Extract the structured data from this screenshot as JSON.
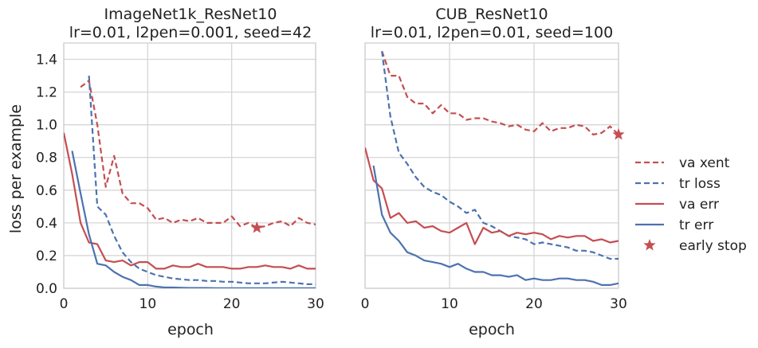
{
  "chart_data": [
    {
      "type": "line",
      "title": "ImageNet1k_ResNet10\nlr=0.01, l2pen=0.001, seed=42",
      "xlabel": "epoch",
      "ylabel": "loss per example",
      "xlim": [
        0,
        30
      ],
      "ylim": [
        0,
        1.5
      ],
      "xticks": [
        0,
        10,
        20,
        30
      ],
      "yticks": [
        0.0,
        0.2,
        0.4,
        0.6,
        0.8,
        1.0,
        1.2,
        1.4
      ],
      "grid": true,
      "series": [
        {
          "name": "va xent",
          "color": "#c44e52",
          "dash": true,
          "x": [
            2,
            3,
            4,
            5,
            6,
            7,
            8,
            9,
            10,
            11,
            12,
            13,
            14,
            15,
            16,
            17,
            18,
            19,
            20,
            21,
            22,
            23,
            24,
            25,
            26,
            27,
            28,
            29,
            30
          ],
          "y": [
            1.23,
            1.27,
            1.0,
            0.62,
            0.81,
            0.58,
            0.52,
            0.52,
            0.49,
            0.42,
            0.43,
            0.4,
            0.42,
            0.41,
            0.43,
            0.4,
            0.4,
            0.4,
            0.44,
            0.38,
            0.4,
            0.37,
            0.38,
            0.4,
            0.41,
            0.38,
            0.43,
            0.4,
            0.39
          ]
        },
        {
          "name": "tr loss",
          "color": "#4c72b0",
          "dash": true,
          "x": [
            3,
            4,
            5,
            6,
            7,
            8,
            9,
            10,
            11,
            12,
            13,
            14,
            15,
            16,
            17,
            18,
            19,
            20,
            21,
            22,
            23,
            24,
            25,
            26,
            27,
            28,
            29,
            30
          ],
          "y": [
            1.3,
            0.5,
            0.45,
            0.32,
            0.22,
            0.16,
            0.12,
            0.1,
            0.08,
            0.07,
            0.06,
            0.055,
            0.05,
            0.05,
            0.045,
            0.045,
            0.04,
            0.04,
            0.035,
            0.03,
            0.03,
            0.03,
            0.035,
            0.04,
            0.035,
            0.03,
            0.025,
            0.025
          ]
        },
        {
          "name": "va err",
          "color": "#c44e52",
          "dash": false,
          "x": [
            0,
            1,
            2,
            3,
            4,
            5,
            6,
            7,
            8,
            9,
            10,
            11,
            12,
            13,
            14,
            15,
            16,
            17,
            18,
            19,
            20,
            21,
            22,
            23,
            24,
            25,
            26,
            27,
            28,
            29,
            30
          ],
          "y": [
            0.95,
            0.7,
            0.4,
            0.28,
            0.27,
            0.17,
            0.16,
            0.17,
            0.14,
            0.16,
            0.16,
            0.12,
            0.12,
            0.14,
            0.13,
            0.13,
            0.15,
            0.13,
            0.13,
            0.13,
            0.12,
            0.12,
            0.13,
            0.13,
            0.14,
            0.13,
            0.13,
            0.12,
            0.14,
            0.12,
            0.12
          ]
        },
        {
          "name": "tr err",
          "color": "#4c72b0",
          "dash": false,
          "x": [
            1,
            2,
            3,
            4,
            5,
            6,
            7,
            8,
            9,
            10,
            11,
            12,
            13,
            14,
            15,
            16,
            17,
            18,
            19,
            20,
            21,
            22,
            23,
            24,
            25,
            26,
            27,
            28,
            29,
            30
          ],
          "y": [
            0.84,
            0.58,
            0.33,
            0.15,
            0.14,
            0.1,
            0.07,
            0.05,
            0.02,
            0.02,
            0.01,
            0.005,
            0.005,
            0.003,
            0.002,
            0.002,
            0.002,
            0.001,
            0.001,
            0.001,
            0.001,
            0.001,
            0.001,
            0.001,
            0.001,
            0.001,
            0.001,
            0.001,
            0.001,
            0.001
          ]
        }
      ],
      "early_stop": {
        "x": 23,
        "y": 0.37
      }
    },
    {
      "type": "line",
      "title": "CUB_ResNet10\nlr=0.01, l2pen=0.01, seed=100",
      "xlabel": "epoch",
      "ylabel": "",
      "xlim": [
        0,
        30
      ],
      "ylim": [
        0,
        1.5
      ],
      "xticks": [
        0,
        10,
        20,
        30
      ],
      "grid": true,
      "series": [
        {
          "name": "va xent",
          "color": "#c44e52",
          "dash": true,
          "x": [
            2,
            3,
            4,
            5,
            6,
            7,
            8,
            9,
            10,
            11,
            12,
            13,
            14,
            15,
            16,
            17,
            18,
            19,
            20,
            21,
            22,
            23,
            24,
            25,
            26,
            27,
            28,
            29,
            30
          ],
          "y": [
            1.45,
            1.3,
            1.3,
            1.17,
            1.13,
            1.13,
            1.07,
            1.12,
            1.07,
            1.07,
            1.03,
            1.04,
            1.04,
            1.02,
            1.01,
            0.99,
            1.0,
            0.97,
            0.96,
            1.01,
            0.96,
            0.98,
            0.98,
            1.0,
            0.99,
            0.94,
            0.95,
            0.99,
            0.94
          ]
        },
        {
          "name": "tr loss",
          "color": "#4c72b0",
          "dash": true,
          "x": [
            2,
            3,
            4,
            5,
            6,
            7,
            8,
            9,
            10,
            11,
            12,
            13,
            14,
            15,
            16,
            17,
            18,
            19,
            20,
            21,
            22,
            23,
            24,
            25,
            26,
            27,
            28,
            29,
            30
          ],
          "y": [
            1.45,
            1.05,
            0.83,
            0.76,
            0.68,
            0.62,
            0.59,
            0.57,
            0.53,
            0.5,
            0.46,
            0.48,
            0.4,
            0.38,
            0.35,
            0.32,
            0.31,
            0.3,
            0.27,
            0.28,
            0.27,
            0.26,
            0.25,
            0.23,
            0.23,
            0.22,
            0.2,
            0.18,
            0.18
          ]
        },
        {
          "name": "va err",
          "color": "#c44e52",
          "dash": false,
          "x": [
            0,
            1,
            2,
            3,
            4,
            5,
            6,
            7,
            8,
            9,
            10,
            11,
            12,
            13,
            14,
            15,
            16,
            17,
            18,
            19,
            20,
            21,
            22,
            23,
            24,
            25,
            26,
            27,
            28,
            29,
            30
          ],
          "y": [
            0.86,
            0.66,
            0.61,
            0.43,
            0.46,
            0.4,
            0.41,
            0.37,
            0.38,
            0.35,
            0.34,
            0.37,
            0.4,
            0.27,
            0.37,
            0.34,
            0.35,
            0.32,
            0.34,
            0.33,
            0.34,
            0.33,
            0.3,
            0.32,
            0.31,
            0.32,
            0.32,
            0.29,
            0.3,
            0.28,
            0.29
          ]
        },
        {
          "name": "tr err",
          "color": "#4c72b0",
          "dash": false,
          "x": [
            1,
            2,
            3,
            4,
            5,
            6,
            7,
            8,
            9,
            10,
            11,
            12,
            13,
            14,
            15,
            16,
            17,
            18,
            19,
            20,
            21,
            22,
            23,
            24,
            25,
            26,
            27,
            28,
            29,
            30
          ],
          "y": [
            0.75,
            0.45,
            0.34,
            0.29,
            0.22,
            0.2,
            0.17,
            0.16,
            0.15,
            0.13,
            0.15,
            0.12,
            0.1,
            0.1,
            0.08,
            0.08,
            0.07,
            0.08,
            0.05,
            0.06,
            0.05,
            0.05,
            0.06,
            0.06,
            0.05,
            0.05,
            0.04,
            0.02,
            0.02,
            0.03
          ]
        }
      ],
      "early_stop": {
        "x": 30,
        "y": 0.94
      }
    }
  ],
  "legend": {
    "placement": "right",
    "items": [
      {
        "label": "va xent",
        "color": "#c44e52",
        "style": "dashed"
      },
      {
        "label": "tr loss",
        "color": "#4c72b0",
        "style": "dashed"
      },
      {
        "label": "va err",
        "color": "#c44e52",
        "style": "solid"
      },
      {
        "label": "tr err",
        "color": "#4c72b0",
        "style": "solid"
      },
      {
        "label": "early stop",
        "color": "#c44e52",
        "style": "star"
      }
    ]
  }
}
